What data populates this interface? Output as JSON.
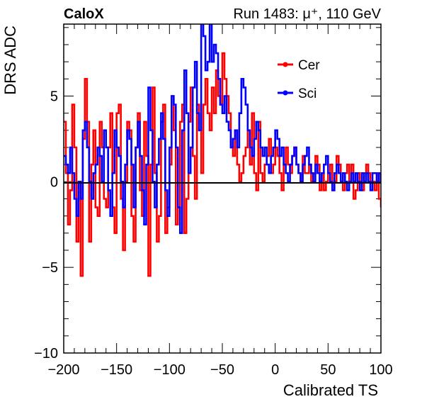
{
  "chart_data": {
    "type": "line",
    "corner_label": "CaloX",
    "run_label": "Run 1483:   μ⁺, 110 GeV",
    "xlabel": "Calibrated TS",
    "ylabel": "DRS ADC",
    "xlim": [
      -200,
      100
    ],
    "ylim": [
      -10,
      9.2
    ],
    "xticks": [
      -200,
      -150,
      -100,
      -50,
      0,
      50,
      100
    ],
    "yticks": [
      -10,
      -5,
      0,
      5
    ],
    "zero_line": true,
    "legend_position": "top-right",
    "series": [
      {
        "name": "Cer",
        "color": "#ff0000",
        "x": [
          -200,
          -198,
          -196,
          -194,
          -192,
          -190,
          -188,
          -186,
          -184,
          -182,
          -180,
          -178,
          -176,
          -174,
          -172,
          -170,
          -168,
          -166,
          -164,
          -162,
          -160,
          -158,
          -156,
          -154,
          -152,
          -150,
          -148,
          -146,
          -144,
          -142,
          -140,
          -138,
          -136,
          -134,
          -132,
          -130,
          -128,
          -126,
          -124,
          -122,
          -120,
          -118,
          -116,
          -114,
          -112,
          -110,
          -108,
          -106,
          -104,
          -102,
          -100,
          -98,
          -96,
          -94,
          -92,
          -90,
          -88,
          -86,
          -84,
          -82,
          -80,
          -78,
          -76,
          -74,
          -72,
          -70,
          -68,
          -66,
          -64,
          -62,
          -60,
          -58,
          -56,
          -54,
          -52,
          -50,
          -48,
          -46,
          -44,
          -42,
          -40,
          -38,
          -36,
          -34,
          -32,
          -30,
          -28,
          -26,
          -24,
          -22,
          -20,
          -18,
          -16,
          -14,
          -12,
          -10,
          -8,
          -6,
          -4,
          -2,
          0,
          2,
          4,
          6,
          8,
          10,
          12,
          14,
          16,
          18,
          20,
          22,
          24,
          26,
          28,
          30,
          32,
          34,
          36,
          38,
          40,
          42,
          44,
          46,
          48,
          50,
          52,
          54,
          56,
          58,
          60,
          62,
          64,
          66,
          68,
          70,
          72,
          74,
          76,
          78,
          80,
          82,
          84,
          86,
          88,
          90,
          92,
          94,
          96,
          98,
          100
        ],
        "y": [
          3.5,
          0.5,
          -2.5,
          -0.5,
          4.5,
          2.0,
          -3.5,
          0.0,
          -5.5,
          2.5,
          6.0,
          3.5,
          -3.5,
          1.0,
          3.0,
          -1.5,
          -2.0,
          3.5,
          2.0,
          -1.0,
          -1.5,
          2.0,
          4.0,
          -1.5,
          -3.0,
          4.0,
          4.5,
          -1.0,
          -4.0,
          0.0,
          3.5,
          3.0,
          -2.0,
          -3.5,
          2.0,
          4.0,
          -0.5,
          -2.0,
          3.5,
          1.5,
          -5.5,
          1.0,
          5.5,
          0.5,
          -3.5,
          -2.0,
          3.5,
          4.5,
          -3.0,
          -1.5,
          1.0,
          5.0,
          3.0,
          -2.5,
          -1.5,
          3.5,
          4.5,
          -3.0,
          -1.0,
          3.5,
          5.5,
          1.5,
          -1.0,
          4.5,
          3.0,
          0.5,
          4.5,
          6.0,
          4.0,
          3.0,
          5.5,
          4.0,
          6.5,
          5.0,
          4.5,
          7.5,
          6.0,
          5.0,
          4.0,
          2.0,
          1.5,
          3.0,
          1.0,
          0.0,
          0.5,
          1.5,
          2.0,
          3.0,
          1.0,
          4.0,
          0.5,
          -0.5,
          3.5,
          0.5,
          0.0,
          1.0,
          1.5,
          2.5,
          0.5,
          1.0,
          2.0,
          1.5,
          0.5,
          -0.5,
          1.0,
          2.0,
          1.0,
          0.5,
          1.5,
          2.0,
          1.0,
          0.5,
          0.0,
          1.5,
          0.5,
          0.5,
          1.0,
          0.0,
          0.5,
          1.5,
          1.0,
          -0.5,
          0.5,
          -0.5,
          0.0,
          0.5,
          1.0,
          -0.5,
          0.0,
          1.5,
          1.0,
          0.0,
          -0.5,
          0.5,
          1.0,
          0.0,
          1.0,
          -1.0,
          -0.5,
          0.5,
          0.0,
          -0.5,
          0.5,
          1.0,
          0.5,
          0.0,
          0.0,
          -0.5,
          0.5,
          -1.0,
          -1.5
        ]
      },
      {
        "name": "Sci",
        "color": "#0000ff",
        "x": [
          -200,
          -198,
          -196,
          -194,
          -192,
          -190,
          -188,
          -186,
          -184,
          -182,
          -180,
          -178,
          -176,
          -174,
          -172,
          -170,
          -168,
          -166,
          -164,
          -162,
          -160,
          -158,
          -156,
          -154,
          -152,
          -150,
          -148,
          -146,
          -144,
          -142,
          -140,
          -138,
          -136,
          -134,
          -132,
          -130,
          -128,
          -126,
          -124,
          -122,
          -120,
          -118,
          -116,
          -114,
          -112,
          -110,
          -108,
          -106,
          -104,
          -102,
          -100,
          -98,
          -96,
          -94,
          -92,
          -90,
          -88,
          -86,
          -84,
          -82,
          -80,
          -78,
          -76,
          -74,
          -72,
          -70,
          -68,
          -66,
          -64,
          -62,
          -60,
          -58,
          -56,
          -54,
          -52,
          -50,
          -48,
          -46,
          -44,
          -42,
          -40,
          -38,
          -36,
          -34,
          -32,
          -30,
          -28,
          -26,
          -24,
          -22,
          -20,
          -18,
          -16,
          -14,
          -12,
          -10,
          -8,
          -6,
          -4,
          -2,
          0,
          2,
          4,
          6,
          8,
          10,
          12,
          14,
          16,
          18,
          20,
          22,
          24,
          26,
          28,
          30,
          32,
          34,
          36,
          38,
          40,
          42,
          44,
          46,
          48,
          50,
          52,
          54,
          56,
          58,
          60,
          62,
          64,
          66,
          68,
          70,
          72,
          74,
          76,
          78,
          80,
          82,
          84,
          86,
          88,
          90,
          92,
          94,
          96,
          98,
          100
        ],
        "y": [
          1.5,
          1.0,
          0.5,
          2.0,
          0.5,
          -1.0,
          -2.0,
          0.0,
          -1.0,
          3.0,
          3.5,
          2.0,
          0.0,
          -1.0,
          0.5,
          1.0,
          2.0,
          1.5,
          0.0,
          3.0,
          2.0,
          -0.5,
          -2.0,
          0.5,
          3.0,
          2.0,
          1.5,
          0.0,
          -1.5,
          1.0,
          3.0,
          2.5,
          1.0,
          -1.5,
          2.0,
          3.5,
          1.5,
          -0.5,
          -2.5,
          1.0,
          5.5,
          3.0,
          0.0,
          -1.5,
          1.0,
          2.5,
          4.0,
          2.5,
          -0.5,
          -2.0,
          2.0,
          5.0,
          4.5,
          2.0,
          -1.5,
          -3.0,
          3.0,
          6.5,
          4.0,
          0.5,
          2.0,
          5.5,
          7.0,
          4.0,
          3.0,
          9.5,
          8.5,
          6.5,
          7.0,
          9.5,
          7.0,
          8.0,
          7.5,
          6.0,
          4.5,
          4.0,
          5.0,
          3.5,
          3.0,
          2.0,
          2.5,
          3.0,
          2.0,
          4.0,
          6.0,
          5.5,
          4.5,
          3.0,
          2.0,
          1.5,
          2.5,
          3.5,
          3.0,
          2.0,
          1.5,
          2.0,
          1.0,
          0.5,
          1.5,
          2.0,
          3.0,
          2.5,
          1.5,
          2.0,
          1.0,
          0.5,
          0.0,
          1.0,
          1.5,
          2.0,
          1.0,
          0.5,
          0.0,
          1.0,
          1.5,
          2.0,
          1.0,
          0.5,
          0.0,
          1.0,
          0.5,
          0.0,
          0.5,
          1.0,
          1.5,
          0.5,
          0.0,
          -0.5,
          0.5,
          1.0,
          0.5,
          0.0,
          0.5,
          0.0,
          -0.5,
          0.0,
          0.5,
          0.0,
          0.5,
          0.0,
          -0.5,
          0.5,
          0.0,
          0.5,
          0.0,
          -0.5,
          0.5,
          0.5,
          0.0,
          0.5,
          0.0
        ]
      }
    ]
  }
}
